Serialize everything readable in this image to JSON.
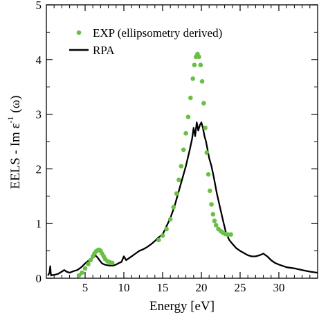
{
  "chart_data": {
    "type": "scatter",
    "xlabel": "Energy [eV]",
    "ylabel_parts": {
      "prefix": "EELS     - Im ε",
      "sup": "-1",
      "suffix": " (ω)"
    },
    "xlim": [
      0,
      35
    ],
    "ylim": [
      0,
      5
    ],
    "x_ticks": [
      5,
      10,
      15,
      20,
      25,
      30
    ],
    "y_ticks": [
      0,
      1,
      2,
      3,
      4,
      5
    ],
    "legend_position": "top-left",
    "series": [
      {
        "name": "EXP (ellipsometry derived)",
        "kind": "markers",
        "color": "#6abf45",
        "x": [
          4.2,
          4.6,
          5.0,
          5.4,
          5.7,
          6.0,
          6.2,
          6.4,
          6.6,
          6.8,
          7.0,
          7.2,
          7.4,
          7.6,
          7.9,
          8.2,
          8.5,
          14.5,
          15.0,
          15.5,
          16.0,
          16.4,
          16.8,
          17.1,
          17.4,
          17.7,
          18.0,
          18.3,
          18.6,
          18.9,
          19.1,
          19.3,
          19.5,
          19.7,
          19.9,
          20.1,
          20.3,
          20.5,
          20.7,
          20.9,
          21.1,
          21.3,
          21.5,
          21.7,
          21.9,
          22.2,
          22.5,
          22.8,
          23.1,
          23.4,
          23.8
        ],
        "y": [
          0.05,
          0.1,
          0.18,
          0.26,
          0.33,
          0.4,
          0.45,
          0.49,
          0.51,
          0.52,
          0.5,
          0.45,
          0.4,
          0.35,
          0.31,
          0.29,
          0.28,
          0.7,
          0.78,
          0.9,
          1.08,
          1.3,
          1.55,
          1.8,
          2.05,
          2.35,
          2.65,
          2.95,
          3.3,
          3.65,
          3.9,
          4.05,
          4.1,
          4.05,
          3.9,
          3.6,
          3.2,
          2.75,
          2.3,
          1.9,
          1.6,
          1.35,
          1.17,
          1.05,
          0.97,
          0.9,
          0.86,
          0.83,
          0.81,
          0.8,
          0.8
        ]
      },
      {
        "name": "RPA",
        "kind": "line",
        "color": "#000000",
        "x": [
          0.2,
          0.4,
          0.5,
          0.6,
          0.8,
          1,
          1.5,
          2,
          2.3,
          2.6,
          3,
          3.5,
          4,
          4.5,
          5,
          5.5,
          6,
          6.3,
          6.6,
          6.9,
          7.2,
          7.5,
          7.8,
          8.2,
          8.6,
          9,
          9.4,
          9.7,
          10,
          10.3,
          10.6,
          11,
          11.5,
          12,
          12.5,
          13,
          13.5,
          14,
          14.5,
          15,
          15.5,
          16,
          16.5,
          17,
          17.5,
          18,
          18.5,
          18.8,
          19,
          19.2,
          19.4,
          19.6,
          19.8,
          20,
          20.2,
          20.4,
          20.6,
          20.8,
          21,
          21.3,
          21.6,
          22,
          22.4,
          22.8,
          23.2,
          23.6,
          24,
          24.5,
          25,
          25.5,
          26,
          26.5,
          27,
          27.5,
          28,
          28.5,
          29,
          29.5,
          30,
          31,
          32,
          33,
          34,
          35
        ],
        "y": [
          0.05,
          0.1,
          0.22,
          0.05,
          0.06,
          0.06,
          0.08,
          0.12,
          0.15,
          0.12,
          0.1,
          0.13,
          0.15,
          0.2,
          0.27,
          0.33,
          0.38,
          0.42,
          0.38,
          0.32,
          0.27,
          0.25,
          0.24,
          0.23,
          0.23,
          0.25,
          0.28,
          0.3,
          0.4,
          0.33,
          0.36,
          0.4,
          0.45,
          0.5,
          0.53,
          0.57,
          0.62,
          0.68,
          0.75,
          0.8,
          0.95,
          1.1,
          1.3,
          1.55,
          1.8,
          2.05,
          2.35,
          2.55,
          2.75,
          2.6,
          2.85,
          2.7,
          2.8,
          2.85,
          2.75,
          2.6,
          2.5,
          2.35,
          2.2,
          2.05,
          1.85,
          1.55,
          1.3,
          1.05,
          0.82,
          0.7,
          0.63,
          0.55,
          0.5,
          0.46,
          0.42,
          0.4,
          0.4,
          0.42,
          0.45,
          0.4,
          0.33,
          0.28,
          0.25,
          0.2,
          0.18,
          0.15,
          0.12,
          0.1
        ]
      }
    ]
  }
}
